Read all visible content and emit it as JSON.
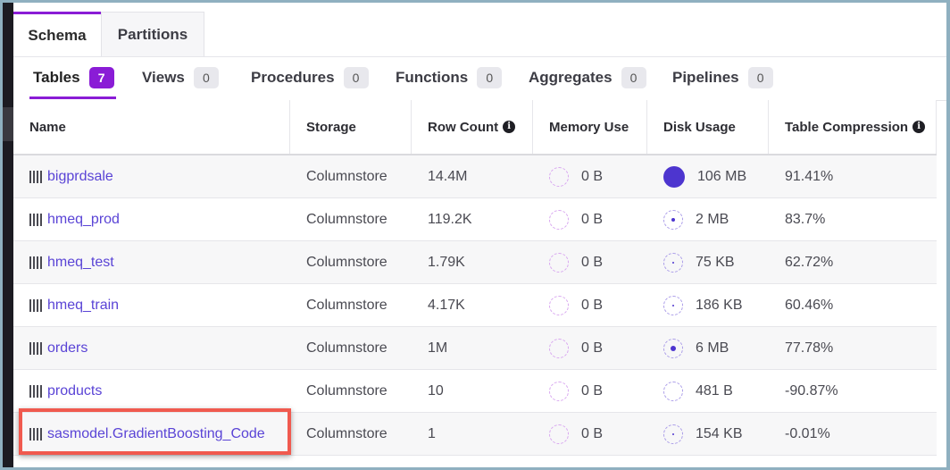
{
  "top_tabs": [
    {
      "label": "Schema",
      "active": true
    },
    {
      "label": "Partitions",
      "active": false
    }
  ],
  "sub_tabs": [
    {
      "label": "Tables",
      "count": "7",
      "active": true
    },
    {
      "label": "Views",
      "count": "0",
      "active": false
    },
    {
      "label": "Procedures",
      "count": "0",
      "active": false
    },
    {
      "label": "Functions",
      "count": "0",
      "active": false
    },
    {
      "label": "Aggregates",
      "count": "0",
      "active": false
    },
    {
      "label": "Pipelines",
      "count": "0",
      "active": false
    }
  ],
  "table": {
    "columns": [
      {
        "label": "Name",
        "info": false
      },
      {
        "label": "Storage",
        "info": false
      },
      {
        "label": "Row Count",
        "info": true
      },
      {
        "label": "Memory Use",
        "info": false
      },
      {
        "label": "Disk Usage",
        "info": false
      },
      {
        "label": "Table Compression",
        "info": true
      }
    ],
    "info_icon_glyph": "i",
    "rows": [
      {
        "name": "bigprdsale",
        "storage": "Columnstore",
        "row_count": "14.4M",
        "memory": "0 B",
        "disk": "106 MB",
        "disk_level": "full",
        "compression": "91.41%"
      },
      {
        "name": "hmeq_prod",
        "storage": "Columnstore",
        "row_count": "119.2K",
        "memory": "0 B",
        "disk": "2 MB",
        "disk_level": "small",
        "compression": "83.7%"
      },
      {
        "name": "hmeq_test",
        "storage": "Columnstore",
        "row_count": "1.79K",
        "memory": "0 B",
        "disk": "75 KB",
        "disk_level": "tiny",
        "compression": "62.72%"
      },
      {
        "name": "hmeq_train",
        "storage": "Columnstore",
        "row_count": "4.17K",
        "memory": "0 B",
        "disk": "186 KB",
        "disk_level": "tiny",
        "compression": "60.46%"
      },
      {
        "name": "orders",
        "storage": "Columnstore",
        "row_count": "1M",
        "memory": "0 B",
        "disk": "6 MB",
        "disk_level": "medium",
        "compression": "77.78%"
      },
      {
        "name": "products",
        "storage": "Columnstore",
        "row_count": "10",
        "memory": "0 B",
        "disk": "481 B",
        "disk_level": "none",
        "compression": "-90.87%"
      },
      {
        "name": "sasmodel.GradientBoosting_Code",
        "storage": "Columnstore",
        "row_count": "1",
        "memory": "0 B",
        "disk": "154 KB",
        "disk_level": "tiny",
        "compression": "-0.01%"
      }
    ]
  },
  "colors": {
    "accent": "#8a1cd6",
    "link": "#5a44d6",
    "disk_fill": "#4d35cf",
    "highlight_box": "#f05a4f"
  },
  "highlighted_row_index": 6
}
